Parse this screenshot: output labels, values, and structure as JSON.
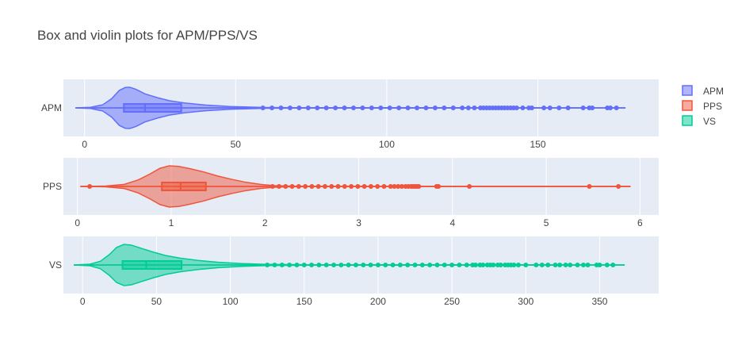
{
  "title": "Box and violin plots for APM/PPS/VS",
  "colors": {
    "plot_bg": "#E5ECF6",
    "grid": "#FFFFFF",
    "text": "#444444"
  },
  "chart_data": [
    {
      "type": "violin",
      "category": "APM",
      "legend_label": "APM",
      "color": "#636EFA",
      "xlim": [
        -7,
        190
      ],
      "ticks": [
        0,
        50,
        100,
        150
      ],
      "density": [
        [
          -3,
          0
        ],
        [
          2,
          0.03
        ],
        [
          6,
          0.15
        ],
        [
          9,
          0.45
        ],
        [
          11.5,
          0.85
        ],
        [
          13.5,
          0.99
        ],
        [
          15,
          1.0
        ],
        [
          17,
          0.9
        ],
        [
          20,
          0.68
        ],
        [
          24,
          0.5
        ],
        [
          28,
          0.35
        ],
        [
          33,
          0.24
        ],
        [
          40,
          0.14
        ],
        [
          48,
          0.07
        ],
        [
          55,
          0.04
        ],
        [
          60,
          0.02
        ],
        [
          70,
          0.01
        ],
        [
          179,
          0
        ]
      ],
      "box": {
        "q1": 13,
        "median": 20,
        "q3": 32,
        "whisker_low": -3,
        "whisker_high": 179
      },
      "outliers": [
        59,
        62,
        65,
        68,
        71,
        74,
        77,
        80,
        83,
        86,
        89,
        92,
        95,
        98,
        101,
        104,
        107,
        110,
        113,
        116,
        119,
        122,
        125,
        127,
        129,
        131,
        132,
        133,
        134,
        135,
        136,
        137,
        138,
        139,
        140,
        141,
        142,
        143,
        145,
        147,
        148,
        152,
        154,
        157,
        160,
        165,
        167,
        168,
        173,
        174,
        176
      ]
    },
    {
      "type": "violin",
      "category": "PPS",
      "legend_label": "PPS",
      "color": "#EF553B",
      "xlim": [
        -0.15,
        6.2
      ],
      "ticks": [
        0,
        1,
        2,
        3,
        4,
        5,
        6
      ],
      "density": [
        [
          0.03,
          0
        ],
        [
          0.3,
          0.02
        ],
        [
          0.5,
          0.1
        ],
        [
          0.65,
          0.32
        ],
        [
          0.78,
          0.62
        ],
        [
          0.88,
          0.88
        ],
        [
          0.98,
          1.0
        ],
        [
          1.08,
          0.97
        ],
        [
          1.2,
          0.86
        ],
        [
          1.35,
          0.7
        ],
        [
          1.5,
          0.5
        ],
        [
          1.65,
          0.34
        ],
        [
          1.8,
          0.2
        ],
        [
          1.95,
          0.1
        ],
        [
          2.1,
          0.04
        ],
        [
          2.3,
          0.015
        ],
        [
          2.6,
          0.004
        ],
        [
          5.9,
          0
        ]
      ],
      "box": {
        "q1": 0.9,
        "median": 1.1,
        "q3": 1.37,
        "whisker_low": 0.03,
        "whisker_high": 5.9
      },
      "outliers": [
        0.13,
        2.08,
        2.15,
        2.22,
        2.29,
        2.36,
        2.43,
        2.5,
        2.57,
        2.64,
        2.71,
        2.78,
        2.85,
        2.92,
        2.99,
        3.06,
        3.13,
        3.2,
        3.27,
        3.34,
        3.38,
        3.42,
        3.46,
        3.5,
        3.53,
        3.56,
        3.58,
        3.6,
        3.62,
        3.64,
        3.83,
        3.85,
        4.18,
        5.46,
        5.77
      ]
    },
    {
      "type": "violin",
      "category": "VS",
      "legend_label": "VS",
      "color": "#00CC96",
      "xlim": [
        -13,
        390
      ],
      "ticks": [
        0,
        50,
        100,
        150,
        200,
        250,
        300,
        350
      ],
      "density": [
        [
          -6,
          0
        ],
        [
          5,
          0.04
        ],
        [
          12,
          0.18
        ],
        [
          18,
          0.5
        ],
        [
          23,
          0.85
        ],
        [
          28,
          1.0
        ],
        [
          33,
          0.96
        ],
        [
          40,
          0.8
        ],
        [
          48,
          0.62
        ],
        [
          56,
          0.46
        ],
        [
          66,
          0.33
        ],
        [
          78,
          0.22
        ],
        [
          92,
          0.13
        ],
        [
          108,
          0.07
        ],
        [
          125,
          0.03
        ],
        [
          150,
          0.01
        ],
        [
          367,
          0
        ]
      ],
      "box": {
        "q1": 27,
        "median": 43,
        "q3": 67,
        "whisker_low": -6,
        "whisker_high": 367
      },
      "outliers": [
        125,
        130,
        135,
        140,
        145,
        150,
        155,
        160,
        165,
        170,
        175,
        180,
        185,
        190,
        195,
        200,
        205,
        210,
        215,
        220,
        225,
        230,
        235,
        240,
        245,
        250,
        255,
        260,
        264,
        266,
        269,
        271,
        274,
        276,
        278,
        281,
        283,
        286,
        288,
        290,
        292,
        295,
        300,
        307,
        311,
        315,
        320,
        323,
        327,
        330,
        335,
        339,
        342,
        348,
        350,
        355,
        359
      ]
    }
  ]
}
